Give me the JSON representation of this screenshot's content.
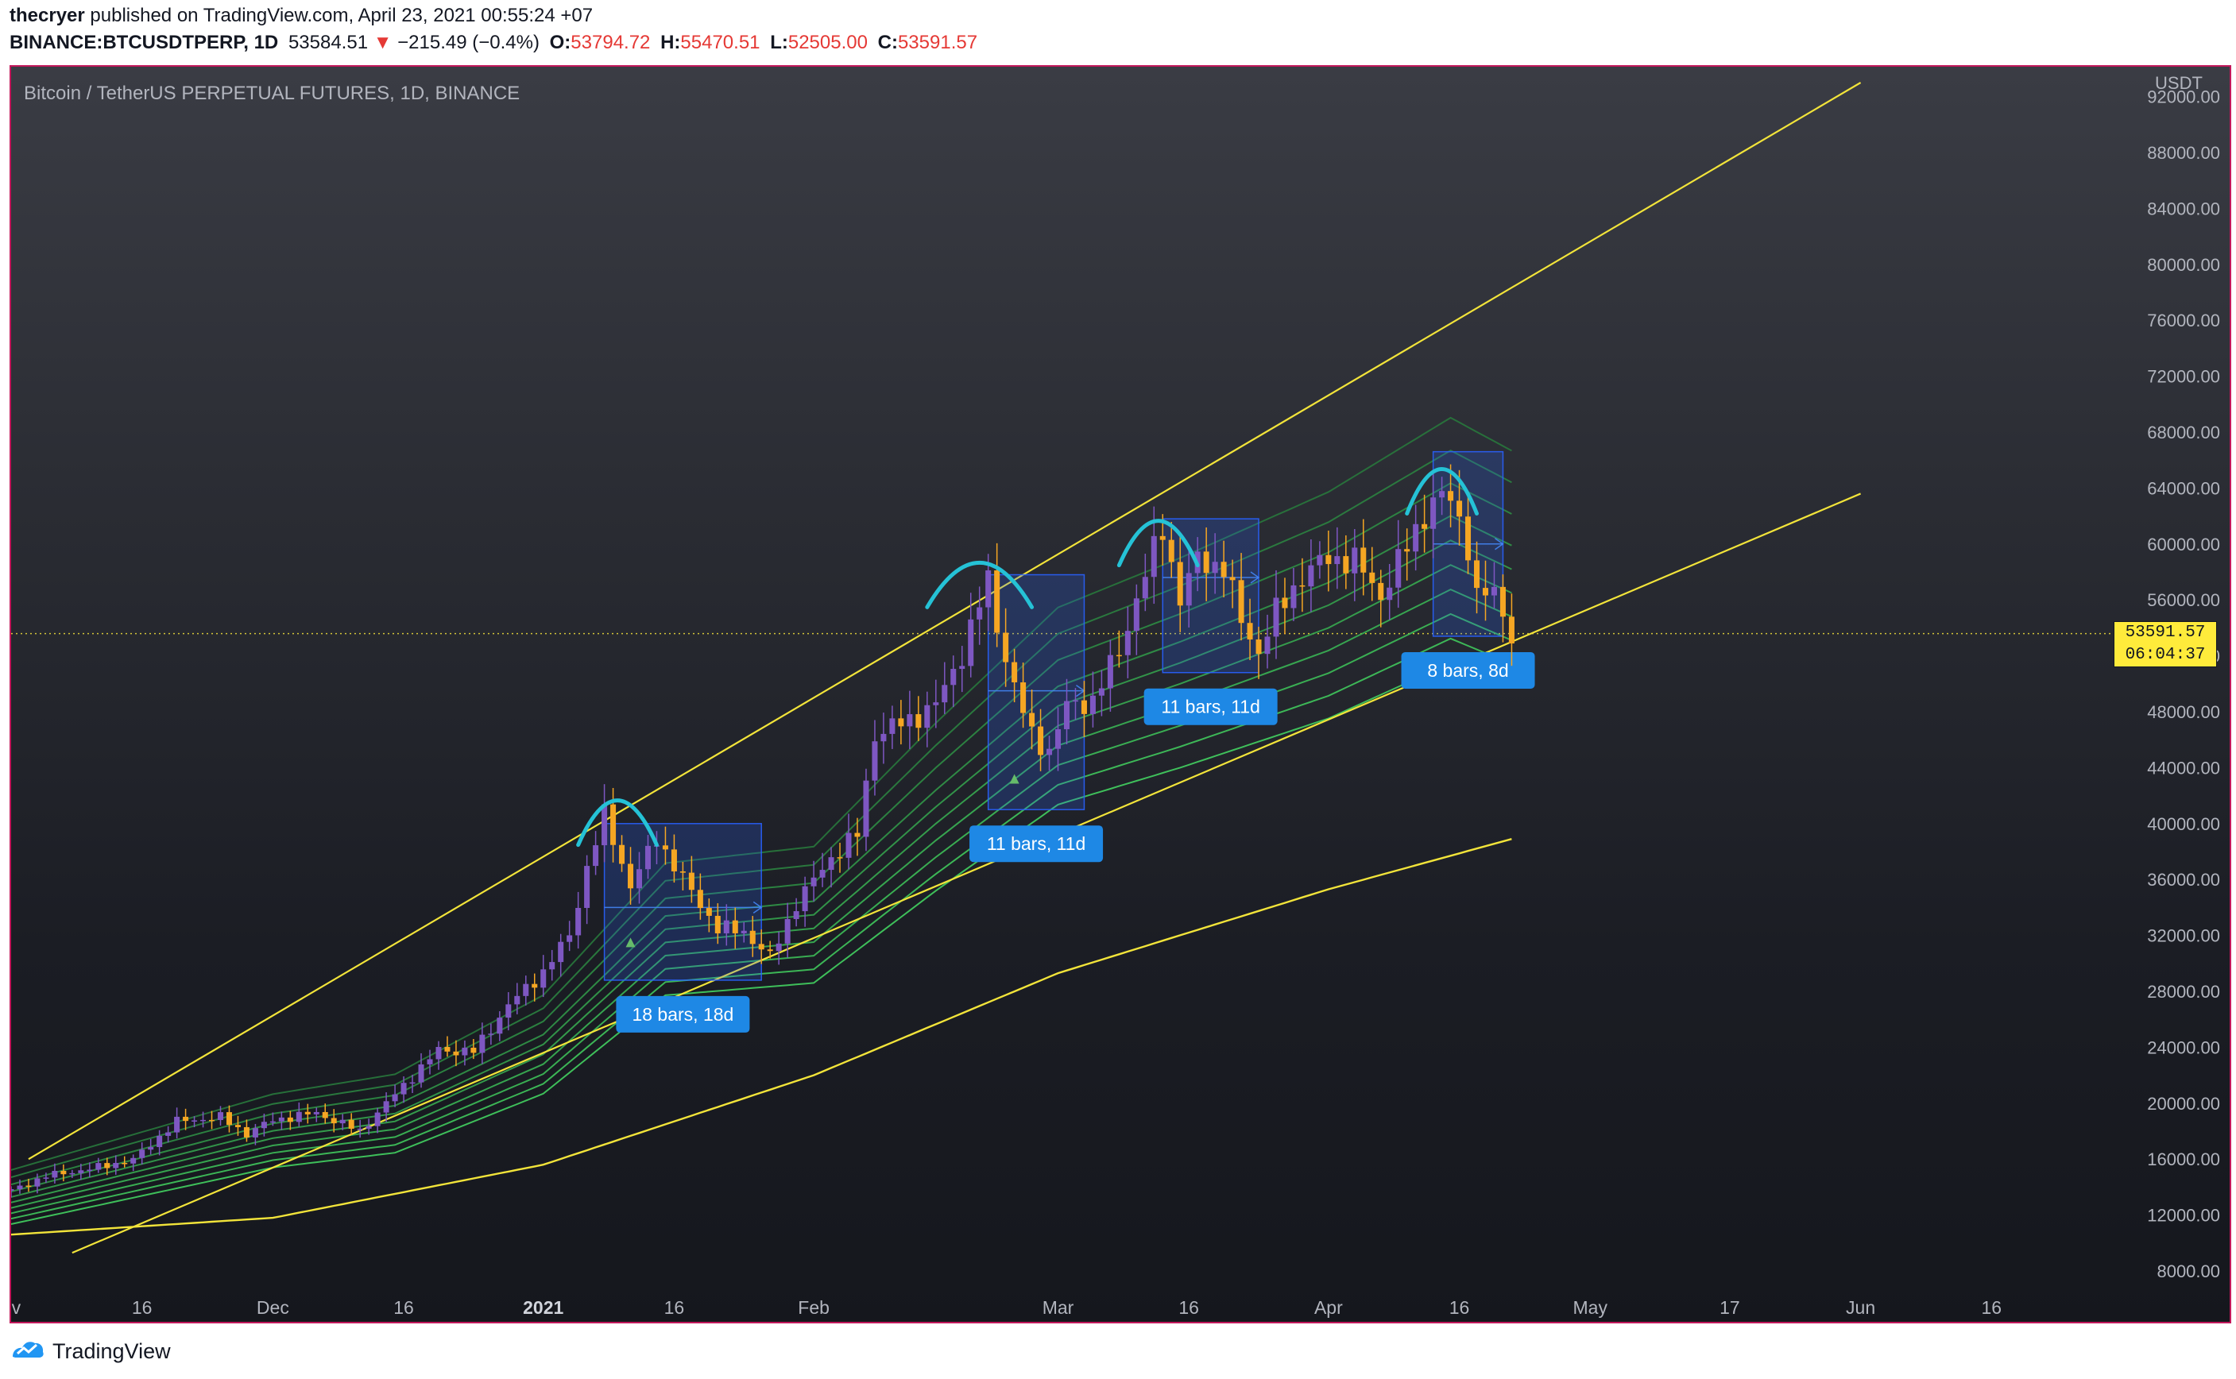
{
  "header": {
    "author": "thecryer",
    "published_text": "published on TradingView.com, April 23, 2021 00:55:24 +07",
    "symbol": "BINANCE:BTCUSDTPERP, 1D",
    "last": "53584.51",
    "change_arrow": "▼",
    "change": "−215.49 (−0.4%)",
    "o_label": "O:",
    "o_value": "53794.72",
    "h_label": "H:",
    "h_value": "55470.51",
    "l_label": "L:",
    "l_value": "52505.00",
    "c_label": "C:",
    "c_value": "53591.57"
  },
  "chart_title": "Bitcoin / TetherUS PERPETUAL FUTURES, 1D, BINANCE",
  "price_tag": {
    "price": "53591.57",
    "countdown": "06:04:37"
  },
  "footer": {
    "brand": "TradingView",
    "logo_icon": "tradingview-logo-icon"
  },
  "colors": {
    "frame_border": "#c2185b",
    "trendline": "#f2e43a",
    "ma200": "#f2e43a",
    "ribbon": "#4caf50",
    "arc": "#25c2d6",
    "range_box": "#2962ff",
    "range_label_bg": "#1e88e5",
    "candle_up": "#7e57c2",
    "candle_down": "#f5a623",
    "price_tag_bg": "#ffeb3b"
  },
  "chart_data": {
    "type": "candlestick",
    "title": "Bitcoin / TetherUS PERPETUAL FUTURES, 1D, BINANCE",
    "currency": "USDT",
    "x_axis_labels": [
      "ov",
      "16",
      "Dec",
      "16",
      "2021",
      "16",
      "Feb",
      "Mar",
      "16",
      "Apr",
      "16",
      "May",
      "17",
      "Jun",
      "16"
    ],
    "y_axis_labels": [
      "92000.00",
      "88000.00",
      "84000.00",
      "80000.00",
      "76000.00",
      "72000.00",
      "68000.00",
      "64000.00",
      "60000.00",
      "56000.00",
      "52000.00",
      "48000.00",
      "44000.00",
      "40000.00",
      "36000.00",
      "32000.00",
      "28000.00",
      "24000.00",
      "20000.00",
      "16000.00",
      "12000.00",
      "8000.00"
    ],
    "ylim": [
      8000,
      93000
    ],
    "last_price": 53591.57,
    "timeline": {
      "start": "2020-11-01",
      "end": "2021-06-30"
    },
    "closes": [
      [
        "2020-11-01",
        13740
      ],
      [
        "2020-11-05",
        14800
      ],
      [
        "2020-11-10",
        15300
      ],
      [
        "2020-11-15",
        15960
      ],
      [
        "2020-11-20",
        18700
      ],
      [
        "2020-11-25",
        19000
      ],
      [
        "2020-11-28",
        17800
      ],
      [
        "2020-12-01",
        18800
      ],
      [
        "2020-12-06",
        19300
      ],
      [
        "2020-12-11",
        18000
      ],
      [
        "2020-12-16",
        21300
      ],
      [
        "2020-12-20",
        23800
      ],
      [
        "2020-12-24",
        23700
      ],
      [
        "2020-12-28",
        27000
      ],
      [
        "2021-01-01",
        29400
      ],
      [
        "2021-01-04",
        32000
      ],
      [
        "2021-01-06",
        36800
      ],
      [
        "2021-01-08",
        40600
      ],
      [
        "2021-01-11",
        35500
      ],
      [
        "2021-01-14",
        39000
      ],
      [
        "2021-01-17",
        36000
      ],
      [
        "2021-01-21",
        32500
      ],
      [
        "2021-01-24",
        32300
      ],
      [
        "2021-01-27",
        30400
      ],
      [
        "2021-01-30",
        34300
      ],
      [
        "2021-02-03",
        37600
      ],
      [
        "2021-02-06",
        39200
      ],
      [
        "2021-02-08",
        46400
      ],
      [
        "2021-02-12",
        47400
      ],
      [
        "2021-02-15",
        48500
      ],
      [
        "2021-02-18",
        52200
      ],
      [
        "2021-02-21",
        57400
      ],
      [
        "2021-02-22",
        54200
      ],
      [
        "2021-02-24",
        49700
      ],
      [
        "2021-02-26",
        46300
      ],
      [
        "2021-02-28",
        45200
      ],
      [
        "2021-03-02",
        48400
      ],
      [
        "2021-03-05",
        48800
      ],
      [
        "2021-03-08",
        52400
      ],
      [
        "2021-03-11",
        57800
      ],
      [
        "2021-03-13",
        61200
      ],
      [
        "2021-03-15",
        56000
      ],
      [
        "2021-03-17",
        58900
      ],
      [
        "2021-03-20",
        58300
      ],
      [
        "2021-03-22",
        54500
      ],
      [
        "2021-03-24",
        52300
      ],
      [
        "2021-03-26",
        55100
      ],
      [
        "2021-03-29",
        57700
      ],
      [
        "2021-04-01",
        59000
      ],
      [
        "2021-04-04",
        58800
      ],
      [
        "2021-04-07",
        56300
      ],
      [
        "2021-04-10",
        59800
      ],
      [
        "2021-04-13",
        63200
      ],
      [
        "2021-04-15",
        63200
      ],
      [
        "2021-04-17",
        60000
      ],
      [
        "2021-04-18",
        56200
      ],
      [
        "2021-04-20",
        56500
      ],
      [
        "2021-04-22",
        53591.57
      ]
    ],
    "ma200": [
      [
        "2020-11-01",
        10600
      ],
      [
        "2020-12-01",
        11800
      ],
      [
        "2021-01-01",
        15600
      ],
      [
        "2021-02-01",
        22000
      ],
      [
        "2021-03-01",
        29300
      ],
      [
        "2021-04-01",
        35300
      ],
      [
        "2021-04-22",
        38900
      ]
    ],
    "ribbon_mid": [
      [
        "2020-11-01",
        12900
      ],
      [
        "2020-12-01",
        17500
      ],
      [
        "2020-12-15",
        18700
      ],
      [
        "2021-01-01",
        23500
      ],
      [
        "2021-01-15",
        31500
      ],
      [
        "2021-02-01",
        32500
      ],
      [
        "2021-02-15",
        40000
      ],
      [
        "2021-03-01",
        47000
      ],
      [
        "2021-03-15",
        50000
      ],
      [
        "2021-04-01",
        54000
      ],
      [
        "2021-04-15",
        58500
      ],
      [
        "2021-04-22",
        56500
      ]
    ],
    "trendlines": [
      {
        "name": "upper-channel",
        "points": [
          [
            "2020-11-03",
            16000
          ],
          [
            "2021-06-01",
            93000
          ]
        ]
      },
      {
        "name": "lower-channel",
        "points": [
          [
            "2020-11-08",
            9300
          ],
          [
            "2021-06-01",
            63600
          ]
        ]
      }
    ],
    "ranges": [
      {
        "label": "18 bars, 18d",
        "start": "2021-01-08",
        "end": "2021-01-26",
        "high": 40000,
        "low": 28800,
        "mid": 34000
      },
      {
        "label": "11 bars, 11d",
        "start": "2021-02-21",
        "end": "2021-03-04",
        "high": 57800,
        "low": 41000,
        "mid": 49500
      },
      {
        "label": "11 bars, 11d",
        "start": "2021-03-13",
        "end": "2021-03-24",
        "high": 61800,
        "low": 50800,
        "mid": 57600
      },
      {
        "label": "8 bars, 8d",
        "start": "2021-04-13",
        "end": "2021-04-21",
        "high": 66600,
        "low": 53400,
        "mid": 60000
      }
    ],
    "arcs": [
      {
        "start": "2021-01-05",
        "end": "2021-01-14",
        "peak": 42000
      },
      {
        "start": "2021-02-14",
        "end": "2021-02-26",
        "peak": 59000
      },
      {
        "start": "2021-03-08",
        "end": "2021-03-17",
        "peak": 62000
      },
      {
        "start": "2021-04-10",
        "end": "2021-04-18",
        "peak": 65700
      }
    ],
    "signals": [
      {
        "date": "2021-01-11",
        "price": 31500
      },
      {
        "date": "2021-02-24",
        "price": 43200
      }
    ]
  }
}
